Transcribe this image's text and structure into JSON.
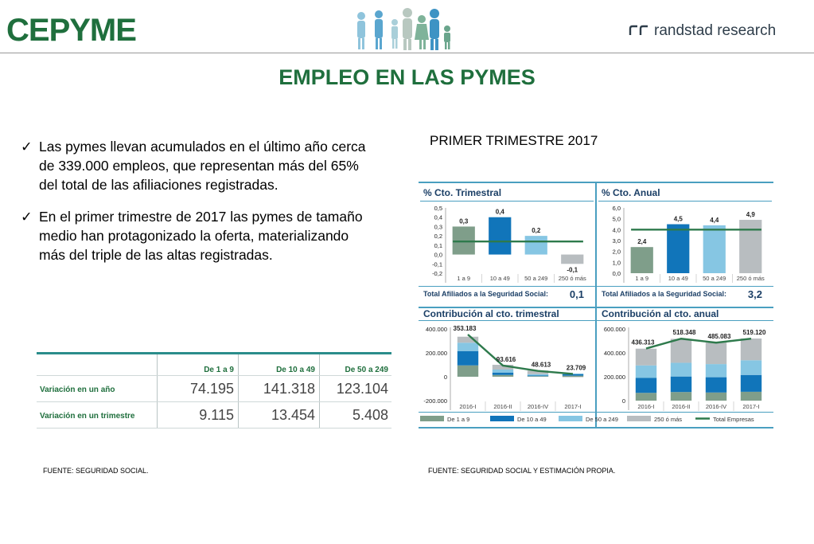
{
  "header": {
    "logo_left": "CEPYME",
    "logo_right": "randstad research",
    "logo_center_icon": "family-people-icon"
  },
  "title": "EMPLEO EN LAS PYMES",
  "bullets": [
    "Las pymes llevan acumulados en el último año cerca de 339.000 empleos, que representan más del 65% del total de las afiliaciones registradas.",
    "En el primer trimestre de 2017 las pymes de tamaño medio han protagonizado la oferta, materializando más del triple de las altas registradas."
  ],
  "table": {
    "headers": [
      "De 1 a 9",
      "De 10 a 49",
      "De 50 a 249"
    ],
    "rows": [
      {
        "label": "Variación en un año",
        "values": [
          "74.195",
          "141.318",
          "123.104"
        ]
      },
      {
        "label": "Variación en un trimestre",
        "values": [
          "9.115",
          "13.454",
          "5.408"
        ]
      }
    ]
  },
  "chart_subtitle": "PRIMER TRIMESTRE 2017",
  "colors": {
    "green_brand": "#1f6f3d",
    "s1": "#7f9e8a",
    "s2": "#1175ba",
    "s3": "#86c6e3",
    "s4": "#b8bdc0",
    "total": "#2e7a4c",
    "panel_border": "#4a9fc0"
  },
  "chart_data": [
    {
      "type": "bar",
      "title": "% Cto. Trimestral",
      "categories": [
        "1 a 9",
        "10 a 49",
        "50 a 249",
        "250 ó más"
      ],
      "values": [
        0.3,
        0.4,
        0.2,
        -0.1
      ],
      "value_labels": [
        "0,3",
        "0,4",
        "0,2",
        "-0,1"
      ],
      "reference_line": 0.14,
      "ylim": [
        -0.2,
        0.5
      ],
      "yticks": [
        "-0,2",
        "-0,1",
        "0,0",
        "0,1",
        "0,2",
        "0,3",
        "0,4",
        "0,5"
      ],
      "footer_label": "Total Afiliados a la Seguridad Social:",
      "footer_value": "0,1"
    },
    {
      "type": "bar",
      "title": "% Cto. Anual",
      "categories": [
        "1 a 9",
        "10 a 49",
        "50 a 249",
        "250 ó más"
      ],
      "values": [
        2.4,
        4.5,
        4.4,
        4.9
      ],
      "value_labels": [
        "2,4",
        "4,5",
        "4,4",
        "4,9"
      ],
      "reference_line": 4.0,
      "ylim": [
        0,
        6
      ],
      "yticks": [
        "0,0",
        "1,0",
        "2,0",
        "3,0",
        "4,0",
        "5,0",
        "6,0"
      ],
      "footer_label": "Total Afiliados a la Seguridad Social:",
      "footer_value": "3,2"
    },
    {
      "type": "bar",
      "title": "Contribución al cto. trimestral",
      "categories": [
        "2016-I",
        "2016-II",
        "2016-IV",
        "2017-I"
      ],
      "series": [
        {
          "name": "De 1 a 9",
          "values": [
            95000,
            15000,
            5000,
            9000
          ]
        },
        {
          "name": "De 10 a 49",
          "values": [
            120000,
            20000,
            5000,
            13000
          ]
        },
        {
          "name": "De 50 a 249",
          "values": [
            70000,
            25000,
            12000,
            5000
          ]
        },
        {
          "name": "250 ó más",
          "values": [
            50000,
            40000,
            30000,
            -4000
          ]
        }
      ],
      "total": {
        "name": "Total Empresas",
        "values": [
          353183,
          93616,
          48613,
          23709
        ],
        "labels": [
          "353.183",
          "93.616",
          "48.613",
          "23.709"
        ]
      },
      "ylim": [
        -200000,
        400000
      ],
      "yticks": [
        "-200.000",
        "0",
        "200.000",
        "400.000"
      ]
    },
    {
      "type": "bar",
      "title": "Contribución al cto. anual",
      "categories": [
        "2016-I",
        "2016-II",
        "2016-IV",
        "2017-I"
      ],
      "series": [
        {
          "name": "De 1 a 9",
          "values": [
            65000,
            72000,
            68000,
            74000
          ]
        },
        {
          "name": "De 10 a 49",
          "values": [
            125000,
            130000,
            128000,
            141000
          ]
        },
        {
          "name": "De 50 a 249",
          "values": [
            105000,
            115000,
            110000,
            123000
          ]
        },
        {
          "name": "250 ó más",
          "values": [
            140000,
            200000,
            180000,
            182000
          ]
        }
      ],
      "total": {
        "name": "Total Empresas",
        "values": [
          436313,
          518348,
          485083,
          519120
        ],
        "labels": [
          "436.313",
          "518.348",
          "485.083",
          "519.120"
        ]
      },
      "ylim": [
        0,
        600000
      ],
      "yticks": [
        "0",
        "200.000",
        "400.000",
        "600.000"
      ]
    }
  ],
  "legend": [
    "De 1 a 9",
    "De 10 a 49",
    "De 50 a 249",
    "250 ó más",
    "Total Empresas"
  ],
  "sources": {
    "left": "FUENTE: SEGURIDAD SOCIAL.",
    "right": "FUENTE: SEGURIDAD SOCIAL Y ESTIMACIÓN PROPIA."
  }
}
